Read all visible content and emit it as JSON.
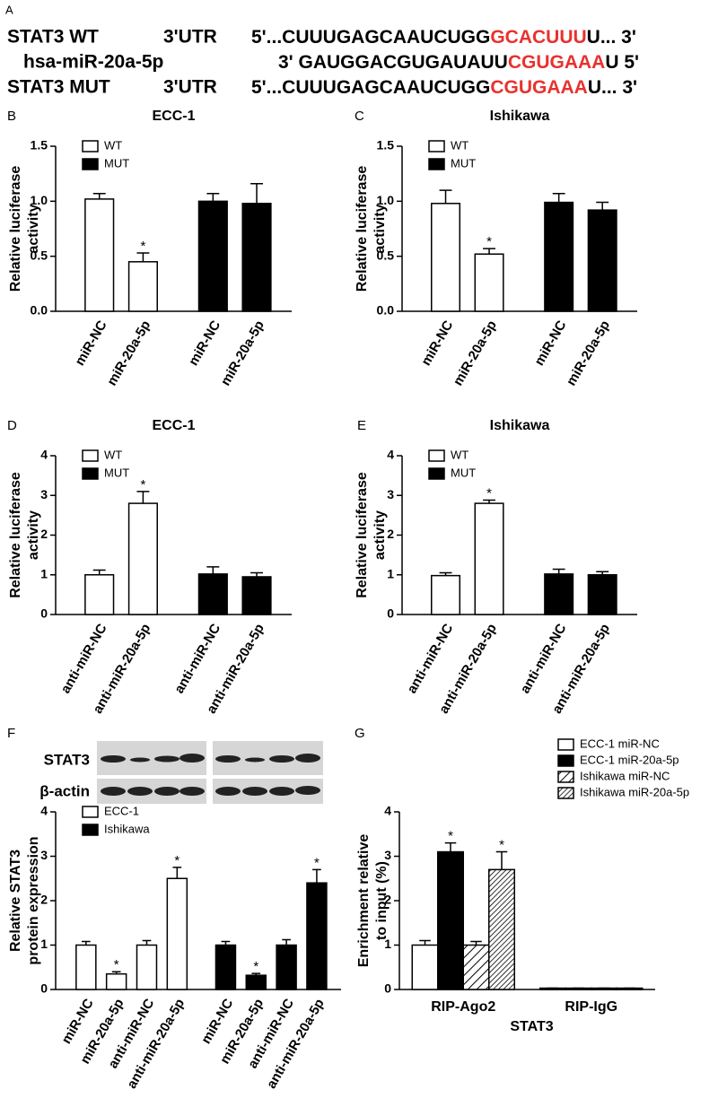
{
  "panel_a": {
    "label": "A",
    "highlight_color": "#e8322e",
    "rows": [
      {
        "name": "STAT3 WT",
        "region": "3'UTR",
        "sequence": [
          "5'...CUUUGAGCAAUCUGG",
          "GCACUUU",
          "U... 3'"
        ]
      },
      {
        "name": "hsa-miR-20a-5p",
        "sequence": [
          "3' GAUGGACGUGAUAUU",
          "CGUGAAA",
          "U  5'"
        ]
      },
      {
        "name": "STAT3 MUT",
        "region": "3'UTR",
        "sequence": [
          "5'...CUUUGAGCAAUCUGG",
          "CGUGAAA",
          "U... 3'"
        ]
      }
    ]
  },
  "blot": {
    "rows": [
      "STAT3",
      "β-actin"
    ]
  },
  "chart_data": [
    {
      "type": "bar",
      "panel": "B",
      "title": "ECC-1",
      "ylabel": [
        "Relative luciferase",
        "activity"
      ],
      "categories": [
        "miR-NC",
        "miR-20a-5p",
        "miR-NC",
        "miR-20a-5p"
      ],
      "series": [
        {
          "name": "WT",
          "color": "#ffffff",
          "values": [
            1.02,
            0.45,
            null,
            null
          ],
          "errors": [
            0.05,
            0.08,
            null,
            null
          ],
          "significant": [
            false,
            true,
            null,
            null
          ]
        },
        {
          "name": "MUT",
          "color": "#000000",
          "values": [
            null,
            null,
            1.0,
            0.98
          ],
          "errors": [
            null,
            null,
            0.07,
            0.18
          ],
          "significant": [
            null,
            null,
            false,
            false
          ]
        }
      ],
      "significance_label": "*",
      "ylim": [
        0,
        1.5
      ],
      "yticks": [
        {
          "value": 0,
          "label": "0.0"
        },
        0.5,
        {
          "value": 1,
          "label": "1.0"
        },
        1.5
      ],
      "legend": "top-left"
    },
    {
      "type": "bar",
      "panel": "C",
      "title": "Ishikawa",
      "ylabel": [
        "Relative luciferase",
        "activity"
      ],
      "categories": [
        "miR-NC",
        "miR-20a-5p",
        "miR-NC",
        "miR-20a-5p"
      ],
      "series": [
        {
          "name": "WT",
          "color": "#ffffff",
          "values": [
            0.98,
            0.52,
            null,
            null
          ],
          "errors": [
            0.12,
            0.05,
            null,
            null
          ],
          "significant": [
            false,
            true,
            null,
            null
          ]
        },
        {
          "name": "MUT",
          "color": "#000000",
          "values": [
            null,
            null,
            0.99,
            0.92
          ],
          "errors": [
            null,
            null,
            0.08,
            0.07
          ],
          "significant": [
            null,
            null,
            false,
            false
          ]
        }
      ],
      "significance_label": "*",
      "ylim": [
        0,
        1.5
      ],
      "yticks": [
        {
          "value": 0,
          "label": "0.0"
        },
        0.5,
        {
          "value": 1,
          "label": "1.0"
        },
        1.5
      ],
      "legend": "top-left"
    },
    {
      "type": "bar",
      "panel": "D",
      "title": "ECC-1",
      "ylabel": [
        "Relative luciferase",
        "activity"
      ],
      "categories": [
        "anti-miR-NC",
        "anti-miR-20a-5p",
        "anti-miR-NC",
        "anti-miR-20a-5p"
      ],
      "series": [
        {
          "name": "WT",
          "color": "#ffffff",
          "values": [
            1.0,
            2.8,
            null,
            null
          ],
          "errors": [
            0.12,
            0.3,
            null,
            null
          ],
          "significant": [
            false,
            true,
            null,
            null
          ]
        },
        {
          "name": "MUT",
          "color": "#000000",
          "values": [
            null,
            null,
            1.02,
            0.95
          ],
          "errors": [
            null,
            null,
            0.18,
            0.1
          ],
          "significant": [
            null,
            null,
            false,
            false
          ]
        }
      ],
      "significance_label": "*",
      "ylim": [
        0,
        4
      ],
      "yticks": [
        0,
        1,
        2,
        3,
        4
      ],
      "legend": "top-left"
    },
    {
      "type": "bar",
      "panel": "E",
      "title": "Ishikawa",
      "ylabel": [
        "Relative luciferase",
        "activity"
      ],
      "categories": [
        "anti-miR-NC",
        "anti-miR-20a-5p",
        "anti-miR-NC",
        "anti-miR-20a-5p"
      ],
      "series": [
        {
          "name": "WT",
          "color": "#ffffff",
          "values": [
            0.98,
            2.8,
            null,
            null
          ],
          "errors": [
            0.07,
            0.08,
            null,
            null
          ],
          "significant": [
            false,
            true,
            null,
            null
          ]
        },
        {
          "name": "MUT",
          "color": "#000000",
          "values": [
            null,
            null,
            1.02,
            1.0
          ],
          "errors": [
            null,
            null,
            0.12,
            0.08
          ],
          "significant": [
            null,
            null,
            false,
            false
          ]
        }
      ],
      "significance_label": "*",
      "ylim": [
        0,
        4
      ],
      "yticks": [
        0,
        1,
        2,
        3,
        4
      ],
      "legend": "top-left"
    },
    {
      "type": "bar",
      "panel": "F",
      "ylabel": [
        "Relative STAT3",
        "protein expression"
      ],
      "categories": [
        "miR-NC",
        "miR-20a-5p",
        "anti-miR-NC",
        "anti-miR-20a-5p",
        "miR-NC",
        "miR-20a-5p",
        "anti-miR-NC",
        "anti-miR-20a-5p"
      ],
      "series": [
        {
          "name": "ECC-1",
          "color": "#ffffff",
          "values": [
            1.0,
            0.35,
            1.0,
            2.5,
            null,
            null,
            null,
            null
          ],
          "errors": [
            0.08,
            0.05,
            0.1,
            0.25,
            null,
            null,
            null,
            null
          ],
          "significant": [
            false,
            true,
            false,
            true,
            null,
            null,
            null,
            null
          ]
        },
        {
          "name": "Ishikawa",
          "color": "#000000",
          "values": [
            null,
            null,
            null,
            null,
            1.0,
            0.32,
            1.0,
            2.4
          ],
          "errors": [
            null,
            null,
            null,
            null,
            0.08,
            0.04,
            0.12,
            0.3
          ],
          "significant": [
            null,
            null,
            null,
            null,
            false,
            true,
            false,
            true
          ]
        }
      ],
      "significance_label": "*",
      "ylim": [
        0,
        4
      ],
      "yticks": [
        0,
        1,
        2,
        3,
        4
      ],
      "legend": "top-left"
    },
    {
      "type": "bar",
      "panel": "G",
      "ylabel": [
        "Enrichment relative",
        "to input (%)"
      ],
      "xlabel": "STAT3",
      "categories": [
        "RIP-Ago2",
        "RIP-IgG"
      ],
      "series": [
        {
          "name": "ECC-1 miR-NC",
          "color": "#ffffff",
          "values": [
            1.0,
            0.03
          ],
          "errors": [
            0.1,
            0.0
          ],
          "significant": [
            false,
            false
          ]
        },
        {
          "name": "ECC-1 miR-20a-5p",
          "color": "#000000",
          "values": [
            3.1,
            0.03
          ],
          "errors": [
            0.2,
            0.0
          ],
          "significant": [
            true,
            false
          ]
        },
        {
          "name": "Ishikawa miR-NC",
          "color": "#ffffff",
          "hatch": "sparse",
          "values": [
            1.0,
            0.03
          ],
          "errors": [
            0.08,
            0.0
          ],
          "significant": [
            false,
            false
          ]
        },
        {
          "name": "Ishikawa miR-20a-5p",
          "color": "#ffffff",
          "hatch": "dense",
          "values": [
            2.7,
            0.03
          ],
          "errors": [
            0.4,
            0.0
          ],
          "significant": [
            true,
            false
          ]
        }
      ],
      "significance_label": "*",
      "ylim": [
        0,
        4
      ],
      "yticks": [
        0,
        1,
        2,
        3,
        4
      ],
      "legend": "outside-top-right"
    }
  ]
}
